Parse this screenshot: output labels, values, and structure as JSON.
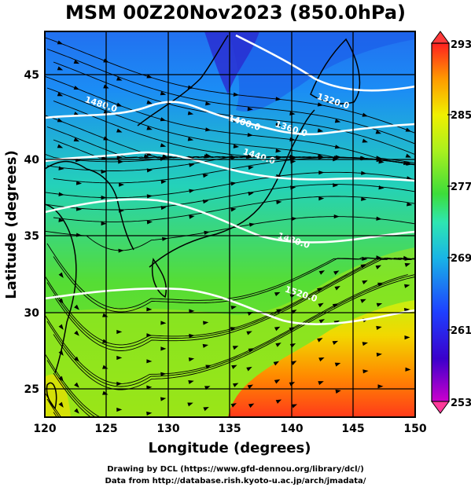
{
  "title": "MSM 00Z20Nov2023 (850.0hPa)",
  "map": {
    "xlabel": "Longitude (degrees)",
    "ylabel": "Latitude  (degrees)",
    "xlim": [
      120,
      150
    ],
    "ylim": [
      22.4,
      47.6
    ],
    "x_ticks": [
      "120",
      "125",
      "130",
      "135",
      "140",
      "145",
      "150"
    ],
    "y_ticks": [
      "25",
      "30",
      "35",
      "40",
      "45"
    ],
    "grid": true,
    "shaded_field": "temperature (K)",
    "overlays": [
      "streamlines",
      "geopotential height contours",
      "coastlines"
    ]
  },
  "contour_labels": [
    {
      "text": "1320.0",
      "lon": 142.0,
      "lat": 43.2
    },
    {
      "text": "1360.0",
      "lon": 138.6,
      "lat": 41.4
    },
    {
      "text": "1400.0",
      "lon": 134.8,
      "lat": 41.8
    },
    {
      "text": "1440.0",
      "lon": 136.0,
      "lat": 39.6
    },
    {
      "text": "1480.0",
      "lon": 123.2,
      "lat": 43.0
    },
    {
      "text": "1480.0",
      "lon": 138.8,
      "lat": 34.1
    },
    {
      "text": "1520.0",
      "lon": 139.4,
      "lat": 30.6
    }
  ],
  "colorbar": {
    "labels": [
      "293",
      "285",
      "277",
      "269",
      "261",
      "253"
    ],
    "min": 253,
    "max": 293,
    "colors": [
      "#ff3a9a",
      "#cc00cc",
      "#3a00cc",
      "#1e40ff",
      "#19b4e6",
      "#2ee6b2",
      "#3ddd3a",
      "#aaf01e",
      "#f0f000",
      "#ff9a00",
      "#ff2020"
    ]
  },
  "credits": {
    "line1": "Drawing by DCL (https://www.gfd-dennou.org/library/dcl/)",
    "line2": "Data from http://database.rish.kyoto-u.ac.jp/arch/jmadata/"
  }
}
